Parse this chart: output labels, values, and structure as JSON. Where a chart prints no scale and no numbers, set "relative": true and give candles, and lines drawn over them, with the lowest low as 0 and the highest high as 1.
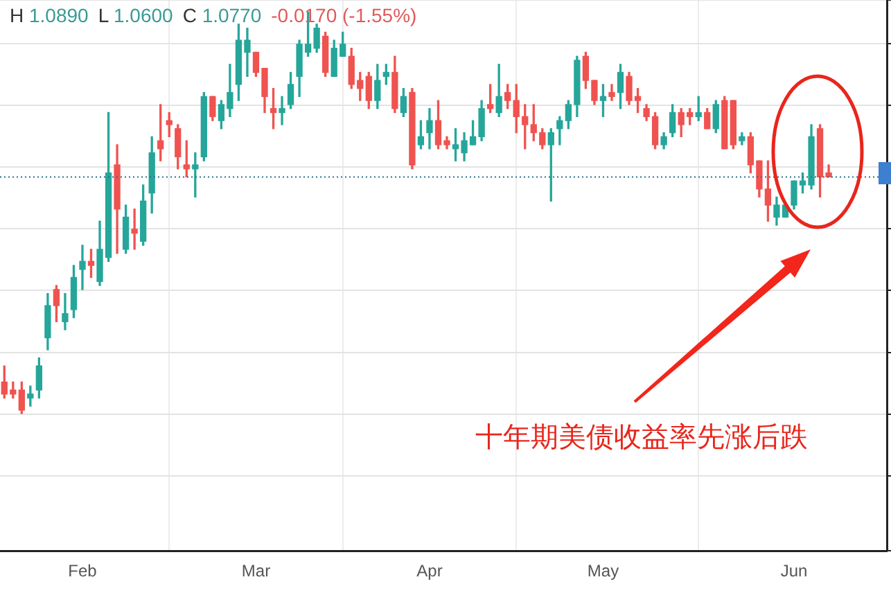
{
  "chart_data": {
    "type": "candlestick",
    "relative": true,
    "grid": true,
    "legend": false,
    "categories": [
      null,
      null,
      null,
      null,
      null,
      null,
      null,
      null,
      null,
      "Feb",
      null,
      null,
      null,
      null,
      null,
      null,
      null,
      null,
      null,
      null,
      null,
      null,
      null,
      null,
      null,
      null,
      null,
      null,
      null,
      "Mar",
      null,
      null,
      null,
      null,
      null,
      null,
      null,
      null,
      null,
      null,
      null,
      null,
      null,
      null,
      null,
      null,
      null,
      null,
      null,
      "Apr",
      null,
      null,
      null,
      null,
      null,
      null,
      null,
      null,
      null,
      null,
      null,
      null,
      null,
      null,
      null,
      null,
      null,
      null,
      null,
      "May",
      null,
      null,
      null,
      null,
      null,
      null,
      null,
      null,
      null,
      null,
      null,
      null,
      null,
      null,
      null,
      null,
      null,
      null,
      null,
      null,
      null,
      "Jun",
      null,
      null,
      null,
      null
    ],
    "ohlc": [
      [
        0.08,
        0.12,
        0.04,
        0.05
      ],
      [
        0.06,
        0.08,
        0.04,
        0.05
      ],
      [
        0.06,
        0.08,
        0,
        0.01
      ],
      [
        0.04,
        0.07,
        0.02,
        0.05
      ],
      [
        0.06,
        0.14,
        0.04,
        0.12
      ],
      [
        0.19,
        0.3,
        0.16,
        0.27
      ],
      [
        0.31,
        0.32,
        0.23,
        0.27
      ],
      [
        0.23,
        0.3,
        0.21,
        0.25
      ],
      [
        0.26,
        0.37,
        0.24,
        0.34
      ],
      [
        0.36,
        0.42,
        0.31,
        0.38
      ],
      [
        0.38,
        0.41,
        0.34,
        0.37
      ],
      [
        0.33,
        0.48,
        0.32,
        0.41
      ],
      [
        0.39,
        0.75,
        0.38,
        0.6
      ],
      [
        0.62,
        0.67,
        0.4,
        0.51
      ],
      [
        0.41,
        0.52,
        0.4,
        0.49
      ],
      [
        0.46,
        0.51,
        0.41,
        0.45
      ],
      [
        0.43,
        0.57,
        0.42,
        0.53
      ],
      [
        0.55,
        0.69,
        0.5,
        0.65
      ],
      [
        0.68,
        0.77,
        0.63,
        0.66
      ],
      [
        0.73,
        0.75,
        0.69,
        0.72
      ],
      [
        0.71,
        0.72,
        0.61,
        0.64
      ],
      [
        0.62,
        0.68,
        0.59,
        0.61
      ],
      [
        0.61,
        0.65,
        0.54,
        0.62
      ],
      [
        0.64,
        0.8,
        0.63,
        0.79
      ],
      [
        0.79,
        0.79,
        0.73,
        0.74
      ],
      [
        0.73,
        0.78,
        0.71,
        0.77
      ],
      [
        0.76,
        0.87,
        0.74,
        0.8
      ],
      [
        0.82,
        0.97,
        0.78,
        0.93
      ],
      [
        0.9,
        0.96,
        0.84,
        0.93
      ],
      [
        0.9,
        0.9,
        0.84,
        0.85
      ],
      [
        0.86,
        0.86,
        0.75,
        0.79
      ],
      [
        0.76,
        0.81,
        0.71,
        0.75
      ],
      [
        0.75,
        0.79,
        0.72,
        0.76
      ],
      [
        0.77,
        0.85,
        0.76,
        0.82
      ],
      [
        0.84,
        0.93,
        0.79,
        0.92
      ],
      [
        0.9,
        1,
        0.89,
        0.92
      ],
      [
        0.91,
        0.97,
        0.9,
        0.96
      ],
      [
        0.94,
        0.95,
        0.84,
        0.85
      ],
      [
        0.84,
        0.93,
        0.84,
        0.91
      ],
      [
        0.89,
        0.95,
        0.89,
        0.92
      ],
      [
        0.89,
        0.91,
        0.81,
        0.82
      ],
      [
        0.83,
        0.85,
        0.78,
        0.81
      ],
      [
        0.84,
        0.85,
        0.76,
        0.78
      ],
      [
        0.78,
        0.87,
        0.76,
        0.83
      ],
      [
        0.84,
        0.87,
        0.82,
        0.85
      ],
      [
        0.85,
        0.89,
        0.75,
        0.76
      ],
      [
        0.75,
        0.81,
        0.74,
        0.79
      ],
      [
        0.8,
        0.81,
        0.61,
        0.62
      ],
      [
        0.67,
        0.73,
        0.66,
        0.69
      ],
      [
        0.7,
        0.76,
        0.66,
        0.73
      ],
      [
        0.73,
        0.78,
        0.66,
        0.67
      ],
      [
        0.68,
        0.69,
        0.66,
        0.67
      ],
      [
        0.66,
        0.71,
        0.63,
        0.67
      ],
      [
        0.65,
        0.7,
        0.63,
        0.68
      ],
      [
        0.67,
        0.73,
        0.67,
        0.69
      ],
      [
        0.69,
        0.78,
        0.68,
        0.76
      ],
      [
        0.77,
        0.82,
        0.75,
        0.76
      ],
      [
        0.75,
        0.87,
        0.74,
        0.79
      ],
      [
        0.8,
        0.82,
        0.76,
        0.78
      ],
      [
        0.78,
        0.82,
        0.7,
        0.74
      ],
      [
        0.74,
        0.77,
        0.66,
        0.72
      ],
      [
        0.72,
        0.77,
        0.68,
        0.7
      ],
      [
        0.7,
        0.71,
        0.66,
        0.67
      ],
      [
        0.67,
        0.71,
        0.53,
        0.7
      ],
      [
        0.71,
        0.74,
        0.67,
        0.73
      ],
      [
        0.73,
        0.78,
        0.71,
        0.77
      ],
      [
        0.77,
        0.89,
        0.74,
        0.88
      ],
      [
        0.89,
        0.9,
        0.81,
        0.83
      ],
      [
        0.83,
        0.83,
        0.77,
        0.78
      ],
      [
        0.78,
        0.82,
        0.74,
        0.79
      ],
      [
        0.8,
        0.82,
        0.78,
        0.79
      ],
      [
        0.8,
        0.87,
        0.76,
        0.85
      ],
      [
        0.84,
        0.85,
        0.77,
        0.78
      ],
      [
        0.79,
        0.81,
        0.75,
        0.78
      ],
      [
        0.76,
        0.77,
        0.73,
        0.74
      ],
      [
        0.74,
        0.75,
        0.66,
        0.67
      ],
      [
        0.67,
        0.7,
        0.66,
        0.69
      ],
      [
        0.7,
        0.77,
        0.69,
        0.75
      ],
      [
        0.75,
        0.76,
        0.69,
        0.72
      ],
      [
        0.75,
        0.76,
        0.72,
        0.74
      ],
      [
        0.74,
        0.79,
        0.73,
        0.75
      ],
      [
        0.75,
        0.76,
        0.71,
        0.71
      ],
      [
        0.71,
        0.78,
        0.7,
        0.77
      ],
      [
        0.78,
        0.79,
        0.66,
        0.66
      ],
      [
        0.78,
        0.78,
        0.66,
        0.67
      ],
      [
        0.68,
        0.7,
        0.67,
        0.69
      ],
      [
        0.69,
        0.7,
        0.6,
        0.62
      ],
      [
        0.63,
        0.63,
        0.54,
        0.56
      ],
      [
        0.56,
        0.63,
        0.48,
        0.52
      ],
      [
        0.49,
        0.54,
        0.47,
        0.52
      ],
      [
        0.49,
        0.52,
        0.49,
        0.52
      ],
      [
        0.52,
        0.58,
        0.51,
        0.58
      ],
      [
        0.57,
        0.6,
        0.55,
        0.58
      ],
      [
        0.57,
        0.72,
        0.56,
        0.69
      ],
      [
        0.71,
        0.72,
        0.54,
        0.59
      ],
      [
        0.6,
        0.62,
        0.59,
        0.59
      ]
    ],
    "ref_lines": [
      {
        "axis": "y",
        "value": 0.59,
        "color": "#2a6f8a",
        "line_style": "dotted"
      }
    ],
    "annotations": [
      "H 1.0890",
      "L 1.0600",
      "C 1.0770",
      "-0.0170 (-1.55%)",
      "十年期美债收益率先涨后跌"
    ]
  }
}
